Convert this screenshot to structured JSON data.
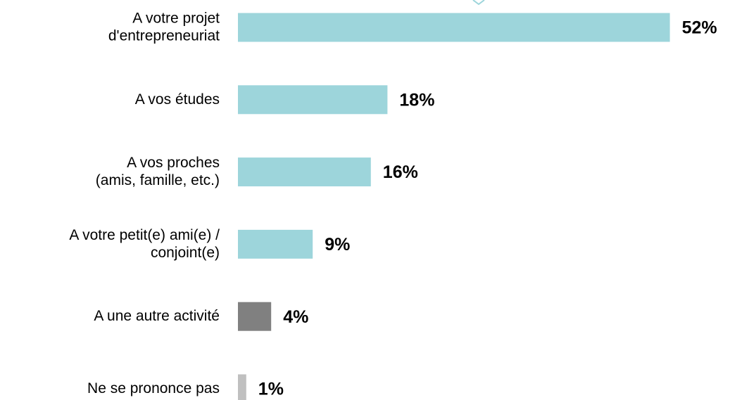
{
  "chart_data": {
    "type": "barh",
    "categories": [
      "A votre projet\nd'entrepreneuriat",
      "A vos études",
      "A vos proches\n(amis, famille, etc.)",
      "A votre petit(e) ami(e) /\nconjoint(e)",
      "A une autre activité",
      "Ne se prononce pas"
    ],
    "values": [
      52,
      18,
      16,
      9,
      4,
      1
    ],
    "value_labels": [
      "52%",
      "18%",
      "16%",
      "9%",
      "4%",
      "1%"
    ],
    "colors": [
      "#9dd5db",
      "#9dd5db",
      "#9dd5db",
      "#9dd5db",
      "#808080",
      "#c0c0c0"
    ]
  }
}
